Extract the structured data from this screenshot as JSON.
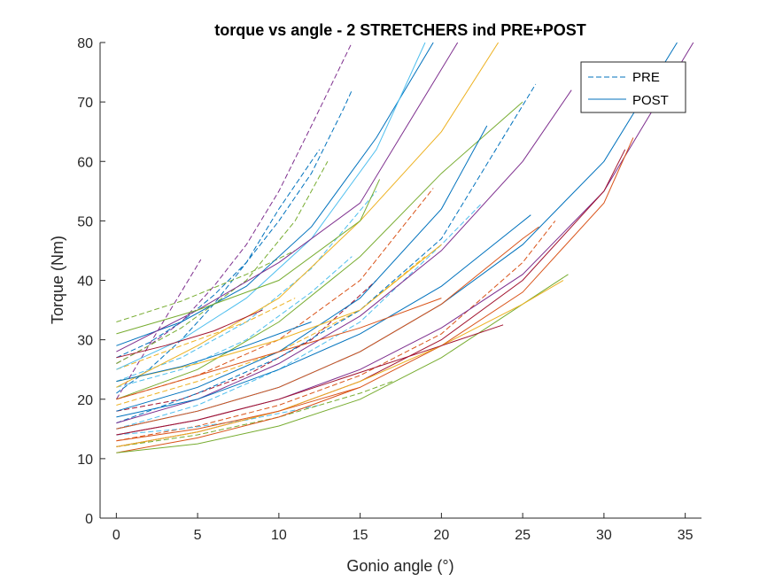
{
  "chart_data": {
    "type": "line",
    "title": "torque vs angle - 2 STRETCHERS ind PRE+POST",
    "xlabel": "Gonio angle (°)",
    "ylabel": "Torque (Nm)",
    "xlim": [
      -1,
      36
    ],
    "ylim": [
      0,
      80
    ],
    "xticks": [
      0,
      5,
      10,
      15,
      20,
      25,
      30,
      35
    ],
    "yticks": [
      0,
      10,
      20,
      30,
      40,
      50,
      60,
      70,
      80
    ],
    "grid": false,
    "legend": {
      "placement": "top-right",
      "entries": [
        "PRE",
        "POST"
      ]
    },
    "colors": [
      "#0072BD",
      "#D95319",
      "#EDB120",
      "#7E2F8E",
      "#77AC30",
      "#4DBEEE",
      "#A2142F"
    ],
    "series": [
      {
        "group": "PRE",
        "x": [
          0,
          5.2
        ],
        "y": [
          20,
          43.5
        ],
        "color": "#7E2F8E"
      },
      {
        "group": "PRE",
        "x": [
          0,
          2,
          4,
          6,
          8,
          10,
          12.5
        ],
        "y": [
          21,
          25,
          30,
          36,
          43,
          52,
          62
        ],
        "color": "#0072BD"
      },
      {
        "group": "PRE",
        "x": [
          0,
          2,
          4,
          6,
          8,
          10,
          12,
          14,
          14.5
        ],
        "y": [
          27,
          29.5,
          33,
          37.5,
          43,
          50,
          58,
          69,
          72
        ],
        "color": "#0072BD"
      },
      {
        "group": "PRE",
        "x": [
          0,
          2,
          4,
          6,
          8,
          10,
          12,
          14.5
        ],
        "y": [
          26,
          29,
          33,
          39,
          46,
          55,
          66,
          80
        ],
        "color": "#7E2F8E"
      },
      {
        "group": "PRE",
        "x": [
          0,
          4,
          8,
          11,
          13
        ],
        "y": [
          26,
          32,
          40,
          50,
          60
        ],
        "color": "#77AC30"
      },
      {
        "group": "PRE",
        "x": [
          0,
          4,
          8,
          11
        ],
        "y": [
          33,
          36.5,
          41,
          45
        ],
        "color": "#77AC30"
      },
      {
        "group": "PRE",
        "x": [
          0,
          4,
          8,
          11
        ],
        "y": [
          25,
          29,
          33,
          37
        ],
        "color": "#EDB120"
      },
      {
        "group": "PRE",
        "x": [
          0,
          4,
          8,
          12,
          14.5
        ],
        "y": [
          22,
          25,
          30,
          38,
          44
        ],
        "color": "#4DBEEE"
      },
      {
        "group": "PRE",
        "x": [
          0,
          4,
          8,
          12,
          16
        ],
        "y": [
          23,
          27,
          33,
          42,
          55
        ],
        "color": "#4DBEEE"
      },
      {
        "group": "PRE",
        "x": [
          0,
          4,
          8,
          12,
          16
        ],
        "y": [
          18,
          20,
          24,
          30,
          40
        ],
        "color": "#A2142F"
      },
      {
        "group": "PRE",
        "x": [
          0,
          5,
          10,
          15,
          19.5
        ],
        "y": [
          20,
          24,
          30,
          40,
          55.5
        ],
        "color": "#D95319"
      },
      {
        "group": "PRE",
        "x": [
          0,
          5,
          10,
          15,
          19
        ],
        "y": [
          19,
          23,
          28,
          35,
          44
        ],
        "color": "#EDB120"
      },
      {
        "group": "PRE",
        "x": [
          0,
          5,
          10,
          15,
          20,
          22.5
        ],
        "y": [
          15,
          19,
          25,
          33,
          46,
          53
        ],
        "color": "#4DBEEE"
      },
      {
        "group": "PRE",
        "x": [
          0,
          5,
          10,
          15,
          20,
          25.8
        ],
        "y": [
          16,
          21,
          27,
          35,
          47,
          73
        ],
        "color": "#0072BD"
      },
      {
        "group": "PRE",
        "x": [
          0,
          5,
          10,
          15,
          20,
          25,
          27
        ],
        "y": [
          13,
          15.5,
          19,
          24,
          31,
          43,
          50
        ],
        "color": "#D95319"
      },
      {
        "group": "PRE",
        "x": [
          0,
          4,
          8,
          12.5
        ],
        "y": [
          14,
          15,
          16.5,
          19
        ],
        "color": "#4DBEEE"
      },
      {
        "group": "PRE",
        "x": [
          0,
          5,
          10,
          15,
          17
        ],
        "y": [
          12,
          14,
          17,
          21,
          23
        ],
        "color": "#77AC30"
      },
      {
        "group": "POST",
        "x": [
          0,
          4,
          8,
          12,
          16,
          19.5
        ],
        "y": [
          29,
          33,
          39,
          49,
          64,
          80
        ],
        "color": "#0072BD"
      },
      {
        "group": "POST",
        "x": [
          0,
          4,
          8,
          12,
          16,
          19
        ],
        "y": [
          25,
          30,
          37,
          47,
          62,
          80
        ],
        "color": "#4DBEEE"
      },
      {
        "group": "POST",
        "x": [
          0,
          5,
          10,
          15,
          21
        ],
        "y": [
          28,
          35,
          43,
          53,
          80
        ],
        "color": "#7E2F8E"
      },
      {
        "group": "POST",
        "x": [
          0,
          5,
          10,
          15,
          20,
          23.5
        ],
        "y": [
          22,
          29,
          37,
          50,
          65,
          80
        ],
        "color": "#EDB120"
      },
      {
        "group": "POST",
        "x": [
          0,
          5,
          10,
          15,
          20,
          25
        ],
        "y": [
          20,
          25,
          33,
          44,
          58,
          70
        ],
        "color": "#77AC30"
      },
      {
        "group": "POST",
        "x": [
          0,
          5,
          10,
          15,
          20,
          22.8
        ],
        "y": [
          18,
          22,
          28,
          37,
          52,
          66
        ],
        "color": "#0072BD"
      },
      {
        "group": "POST",
        "x": [
          0,
          5,
          10,
          15,
          20,
          25,
          28
        ],
        "y": [
          16,
          20,
          26,
          34,
          45,
          60,
          72
        ],
        "color": "#7E2F8E"
      },
      {
        "group": "POST",
        "x": [
          0,
          5,
          10,
          15,
          20,
          25,
          30,
          34.5
        ],
        "y": [
          15,
          18,
          22,
          28,
          36,
          46,
          60,
          80
        ],
        "color": "#0072BD"
      },
      {
        "group": "POST",
        "x": [
          0,
          5,
          10,
          15,
          20,
          25,
          30,
          35.5
        ],
        "y": [
          14,
          16.5,
          20,
          25,
          32,
          41,
          55,
          80
        ],
        "color": "#7E2F8E"
      },
      {
        "group": "POST",
        "x": [
          0,
          5,
          10,
          15,
          20,
          25,
          30,
          31.8
        ],
        "y": [
          11,
          13.5,
          17,
          22,
          29,
          38,
          53,
          64
        ],
        "color": "#D95319"
      },
      {
        "group": "POST",
        "x": [
          0,
          5,
          10,
          15,
          20,
          25,
          30,
          31.3
        ],
        "y": [
          12,
          14.5,
          18,
          23,
          30,
          40,
          55,
          62
        ],
        "color": "#A2142F"
      },
      {
        "group": "POST",
        "x": [
          0,
          5,
          10,
          15,
          20,
          25,
          27.8
        ],
        "y": [
          11,
          12.5,
          15.5,
          20,
          27,
          36,
          41
        ],
        "color": "#77AC30"
      },
      {
        "group": "POST",
        "x": [
          0,
          5,
          10,
          15,
          20,
          25,
          27.5
        ],
        "y": [
          12,
          14.5,
          18,
          23,
          29,
          36,
          40
        ],
        "color": "#EDB120"
      },
      {
        "group": "POST",
        "x": [
          0,
          5,
          10,
          15,
          20,
          23.8
        ],
        "y": [
          14,
          16.5,
          20,
          24.5,
          29,
          32.5
        ],
        "color": "#A2142F"
      },
      {
        "group": "POST",
        "x": [
          0,
          5,
          10,
          15,
          20,
          25.5
        ],
        "y": [
          17,
          20,
          25,
          31,
          39,
          51
        ],
        "color": "#0072BD"
      },
      {
        "group": "POST",
        "x": [
          0,
          5,
          10,
          15,
          20,
          25,
          26
        ],
        "y": [
          15,
          18,
          22,
          28,
          36,
          47,
          49
        ],
        "color": "#D95319"
      },
      {
        "group": "POST",
        "x": [
          0,
          5,
          10,
          15,
          20
        ],
        "y": [
          23,
          26,
          30,
          35,
          46
        ],
        "color": "#EDB120"
      },
      {
        "group": "POST",
        "x": [
          0,
          5,
          10,
          15,
          16.2
        ],
        "y": [
          31,
          35,
          40,
          50,
          57
        ],
        "color": "#77AC30"
      },
      {
        "group": "POST",
        "x": [
          0,
          4,
          8,
          12
        ],
        "y": [
          23,
          25.5,
          29,
          33
        ],
        "color": "#0072BD"
      },
      {
        "group": "POST",
        "x": [
          0,
          3,
          6,
          9
        ],
        "y": [
          27,
          29,
          31.5,
          35
        ],
        "color": "#A2142F"
      },
      {
        "group": "POST",
        "x": [
          0,
          5,
          10,
          15,
          20
        ],
        "y": [
          20,
          24,
          28,
          32,
          37
        ],
        "color": "#D95319"
      },
      {
        "group": "POST",
        "x": [
          0,
          5,
          10,
          15
        ],
        "y": [
          13,
          15,
          18,
          22
        ],
        "color": "#D95319"
      }
    ]
  }
}
